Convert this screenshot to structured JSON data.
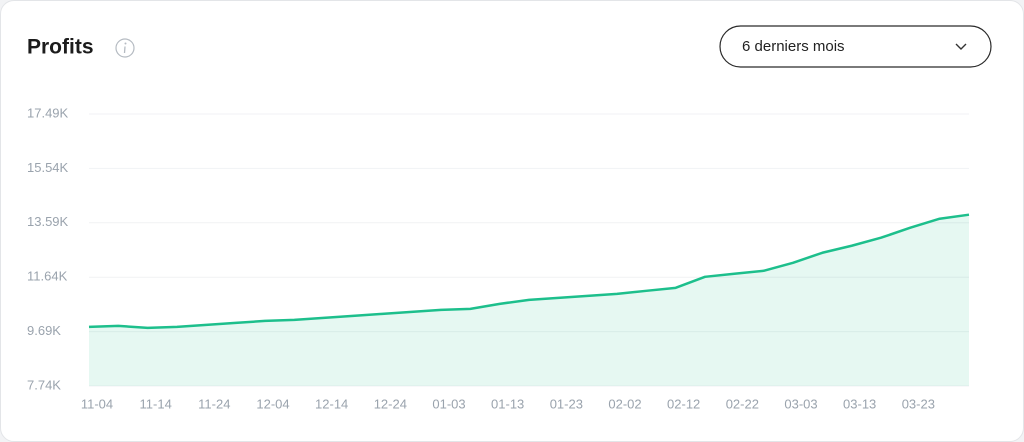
{
  "chart_data": {
    "type": "area",
    "title": "Profits",
    "categories": [
      "11-04",
      null,
      "11-14",
      null,
      "11-24",
      null,
      "12-04",
      null,
      "12-14",
      null,
      "12-24",
      null,
      "01-03",
      null,
      "01-13",
      null,
      "01-23",
      null,
      "02-02",
      null,
      "02-12",
      null,
      "02-22",
      null,
      "03-03",
      null,
      "03-13",
      null,
      "03-23",
      null,
      null
    ],
    "series": [
      {
        "name": "Profits",
        "color": "#1dbf8c",
        "values": [
          9859,
          9895,
          9823,
          9859,
          9930,
          10002,
          10074,
          10110,
          10182,
          10254,
          10326,
          10397,
          10469,
          10505,
          10685,
          10828,
          10900,
          10972,
          11044,
          11152,
          11259,
          11654,
          11762,
          11870,
          12157,
          12516,
          12768,
          13055,
          13414,
          13737,
          13881
        ]
      }
    ],
    "ylim": [
      7740,
      17490
    ],
    "yticks": [
      {
        "value": 7740,
        "label": "7.74K"
      },
      {
        "value": 9690,
        "label": "9.69K"
      },
      {
        "value": 11640,
        "label": "11.64K"
      },
      {
        "value": 13590,
        "label": "13.59K"
      },
      {
        "value": 15540,
        "label": "15.54K"
      },
      {
        "value": 17490,
        "label": "17.49K"
      }
    ],
    "grid": true
  },
  "controls": {
    "range": "6 derniers mois"
  }
}
